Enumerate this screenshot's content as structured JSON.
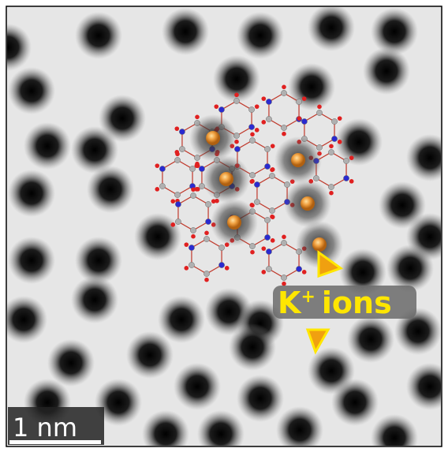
{
  "annotation": {
    "element": "K",
    "charge": "+",
    "word": "ions"
  },
  "scale_bar": {
    "label": "1 nm"
  }
}
